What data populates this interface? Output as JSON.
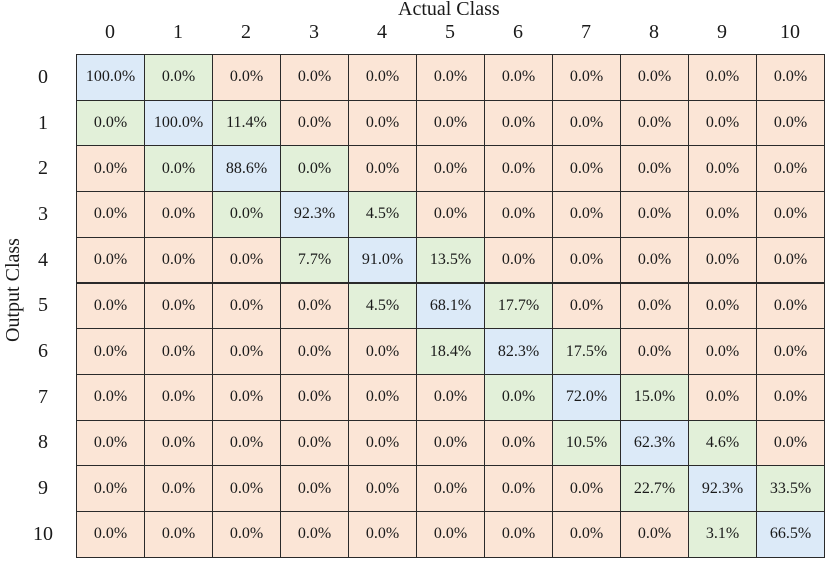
{
  "chart_data": {
    "type": "heatmap",
    "title": "",
    "xlabel": "Actual Class",
    "ylabel": "Output Class",
    "x_categories": [
      "0",
      "1",
      "2",
      "3",
      "4",
      "5",
      "6",
      "7",
      "8",
      "9",
      "10"
    ],
    "y_categories": [
      "0",
      "1",
      "2",
      "3",
      "4",
      "5",
      "6",
      "7",
      "8",
      "9",
      "10"
    ],
    "value_format": "percent",
    "colors": {
      "diagonal": "#dceaf8",
      "nonzero": "#e2f0d9",
      "zero": "#fbe5d6",
      "border": "#2a2a2a"
    },
    "cells": [
      [
        "100.0%",
        "0.0%",
        "0.0%",
        "0.0%",
        "0.0%",
        "0.0%",
        "0.0%",
        "0.0%",
        "0.0%",
        "0.0%",
        "0.0%"
      ],
      [
        "0.0%",
        "100.0%",
        "11.4%",
        "0.0%",
        "0.0%",
        "0.0%",
        "0.0%",
        "0.0%",
        "0.0%",
        "0.0%",
        "0.0%"
      ],
      [
        "0.0%",
        "0.0%",
        "88.6%",
        "0.0%",
        "0.0%",
        "0.0%",
        "0.0%",
        "0.0%",
        "0.0%",
        "0.0%",
        "0.0%"
      ],
      [
        "0.0%",
        "0.0%",
        "0.0%",
        "92.3%",
        "4.5%",
        "0.0%",
        "0.0%",
        "0.0%",
        "0.0%",
        "0.0%",
        "0.0%"
      ],
      [
        "0.0%",
        "0.0%",
        "0.0%",
        "7.7%",
        "91.0%",
        "13.5%",
        "0.0%",
        "0.0%",
        "0.0%",
        "0.0%",
        "0.0%"
      ],
      [
        "0.0%",
        "0.0%",
        "0.0%",
        "0.0%",
        "4.5%",
        "68.1%",
        "17.7%",
        "0.0%",
        "0.0%",
        "0.0%",
        "0.0%"
      ],
      [
        "0.0%",
        "0.0%",
        "0.0%",
        "0.0%",
        "0.0%",
        "18.4%",
        "82.3%",
        "17.5%",
        "0.0%",
        "0.0%",
        "0.0%"
      ],
      [
        "0.0%",
        "0.0%",
        "0.0%",
        "0.0%",
        "0.0%",
        "0.0%",
        "0.0%",
        "72.0%",
        "15.0%",
        "0.0%",
        "0.0%"
      ],
      [
        "0.0%",
        "0.0%",
        "0.0%",
        "0.0%",
        "0.0%",
        "0.0%",
        "0.0%",
        "10.5%",
        "62.3%",
        "4.6%",
        "0.0%"
      ],
      [
        "0.0%",
        "0.0%",
        "0.0%",
        "0.0%",
        "0.0%",
        "0.0%",
        "0.0%",
        "0.0%",
        "22.7%",
        "92.3%",
        "33.5%"
      ],
      [
        "0.0%",
        "0.0%",
        "0.0%",
        "0.0%",
        "0.0%",
        "0.0%",
        "0.0%",
        "0.0%",
        "0.0%",
        "3.1%",
        "66.5%"
      ]
    ],
    "nonzero_offdiagonal_highlighted": [
      [
        0,
        1
      ],
      [
        1,
        0
      ],
      [
        1,
        2
      ],
      [
        2,
        1
      ],
      [
        2,
        3
      ],
      [
        3,
        2
      ],
      [
        3,
        4
      ],
      [
        4,
        3
      ],
      [
        4,
        5
      ],
      [
        5,
        4
      ],
      [
        5,
        6
      ],
      [
        6,
        5
      ],
      [
        6,
        7
      ],
      [
        7,
        6
      ],
      [
        7,
        8
      ],
      [
        8,
        7
      ],
      [
        8,
        9
      ],
      [
        9,
        8
      ],
      [
        9,
        10
      ],
      [
        10,
        9
      ]
    ]
  }
}
